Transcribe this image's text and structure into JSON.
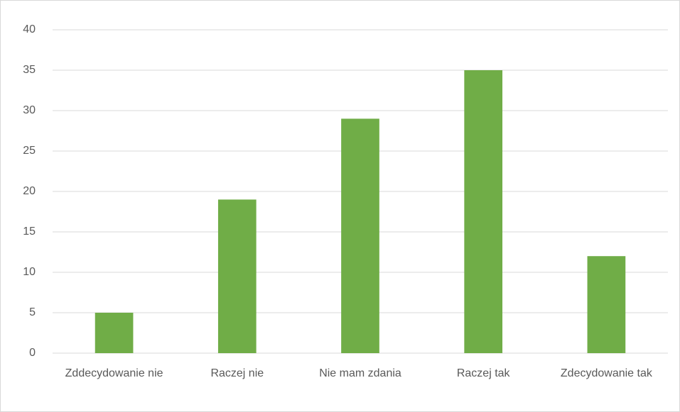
{
  "chart_data": {
    "type": "bar",
    "categories": [
      "Zddecydowanie nie",
      "Raczej nie",
      "Nie mam zdania",
      "Raczej tak",
      "Zdecydowanie tak"
    ],
    "values": [
      5,
      19,
      29,
      35,
      12
    ],
    "color": "#70ad47",
    "ylim": [
      0,
      40
    ],
    "yticks": [
      0,
      5,
      10,
      15,
      20,
      25,
      30,
      35,
      40
    ],
    "grid": true
  }
}
